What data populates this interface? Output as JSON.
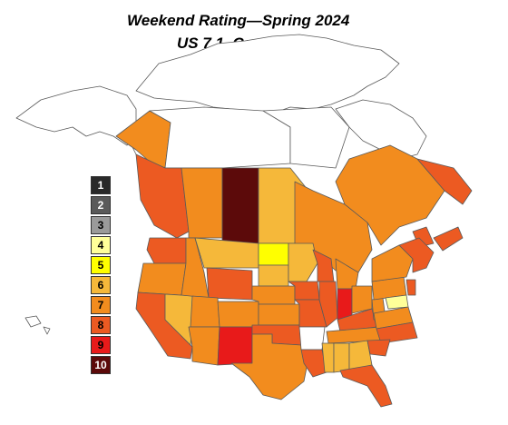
{
  "title": {
    "line1": "Weekend Rating—Spring 2024",
    "line2": "US 7.1, Canada 7.4"
  },
  "legend": {
    "items": [
      {
        "label": "1",
        "color": "#2a2a2a",
        "text_color": "#ffffff"
      },
      {
        "label": "2",
        "color": "#5a5a5a",
        "text_color": "#ffffff"
      },
      {
        "label": "3",
        "color": "#9a9a9a",
        "text_color": "#000000"
      },
      {
        "label": "4",
        "color": "#ffff99",
        "text_color": "#000000"
      },
      {
        "label": "5",
        "color": "#ffff00",
        "text_color": "#000000"
      },
      {
        "label": "6",
        "color": "#f5b83a",
        "text_color": "#000000"
      },
      {
        "label": "7",
        "color": "#f28c1e",
        "text_color": "#000000"
      },
      {
        "label": "8",
        "color": "#ec5a22",
        "text_color": "#000000"
      },
      {
        "label": "9",
        "color": "#e81a1a",
        "text_color": "#000000"
      },
      {
        "label": "10",
        "color": "#5c0a0a",
        "text_color": "#ffffff"
      }
    ]
  },
  "colors": {
    "unrated": "#ffffff",
    "border": "#5a5a5a"
  }
}
